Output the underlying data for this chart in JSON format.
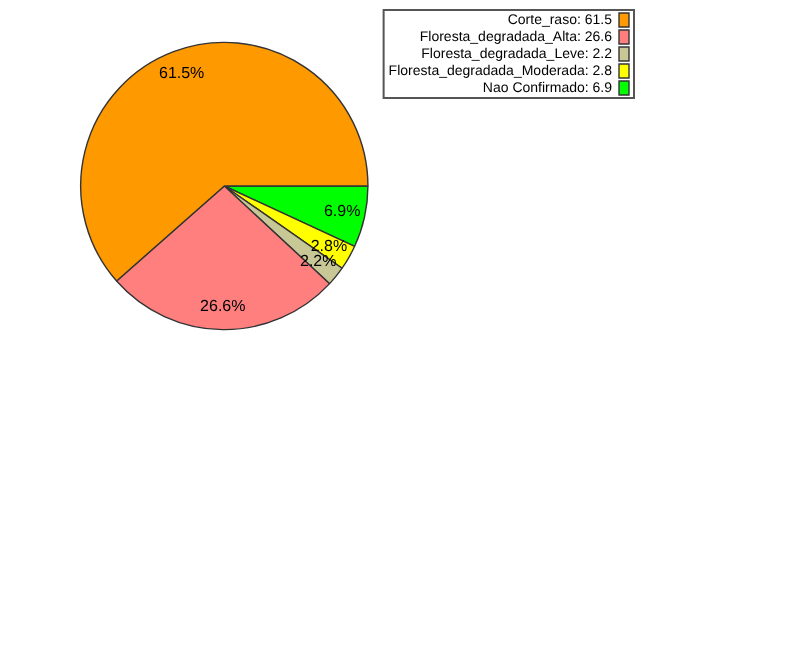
{
  "chart_data": {
    "type": "pie",
    "categories": [
      "Corte_raso: 61.5",
      "Floresta_degradada_Alta: 26.6",
      "Floresta_degradada_Leve: 2.2",
      "Floresta_degradada_Moderada: 2.8",
      "Nao Confirmado: 6.9"
    ],
    "values": [
      61.5,
      26.6,
      2.2,
      2.8,
      6.9
    ],
    "colors": [
      "#ff9900",
      "#ff7f7f",
      "#c8c896",
      "#ffff00",
      "#00ff00"
    ],
    "value_labels": [
      "61.5%",
      "26.6%",
      "2.2%",
      "2.8%",
      "6.9%"
    ],
    "legend": "top right"
  }
}
